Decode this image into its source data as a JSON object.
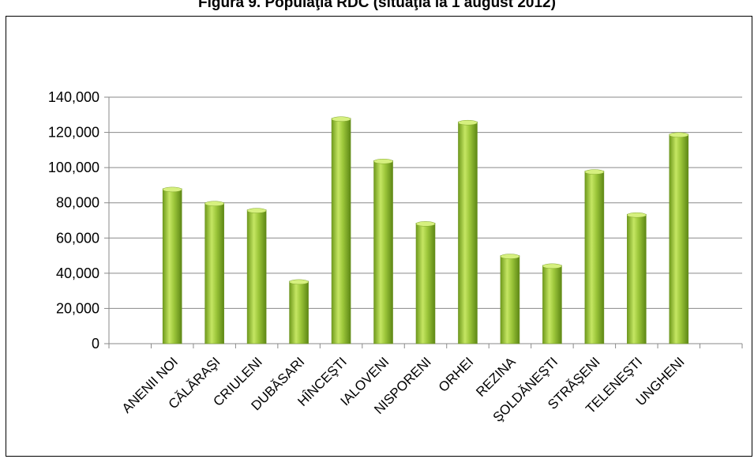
{
  "chart_data": {
    "type": "bar",
    "title": "Figura 9. Populaţia RDC (situaţia la 1 august 2012)",
    "xlabel": "",
    "ylabel": "",
    "categories": [
      "ANENII NOI",
      "CĂLĂRAŞI",
      "CRIULENI",
      "DUBĂSARI",
      "HÎNCEŞTI",
      "IALOVENI",
      "NISPORENI",
      "ORHEI",
      "REZINA",
      "ŞOLDĂNEŞTI",
      "STRĂŞENI",
      "TELENEŞTI",
      "UNGHENI"
    ],
    "values": [
      88000,
      80000,
      76000,
      35500,
      128000,
      104000,
      68500,
      126000,
      50000,
      44500,
      98000,
      73500,
      119000
    ],
    "ylim": [
      0,
      140000
    ],
    "yticks": [
      0,
      20000,
      40000,
      60000,
      80000,
      100000,
      120000,
      140000
    ],
    "ytick_labels": [
      "0",
      "20,000",
      "40,000",
      "60,000",
      "80,000",
      "100,000",
      "120,000",
      "140,000"
    ],
    "grid": true,
    "bar_color": "#8db52a",
    "bar_highlight": "#c8e86a"
  }
}
